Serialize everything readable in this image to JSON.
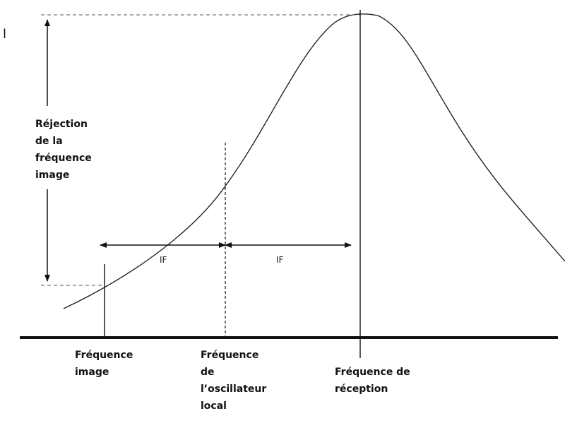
{
  "diagram": {
    "rejection_label": "Réjection\nde la\nfréquence\nimage",
    "if_left": "IF",
    "if_right": "IF",
    "image_freq_label": "Fréquence\nimage",
    "local_osc_label": "Fréquence\nde\nl’oscillateur\nlocal",
    "reception_label": "Fréquence de\nréception",
    "stray_mark": "l"
  },
  "colors": {
    "ink": "#111111",
    "guide": "#555555"
  }
}
